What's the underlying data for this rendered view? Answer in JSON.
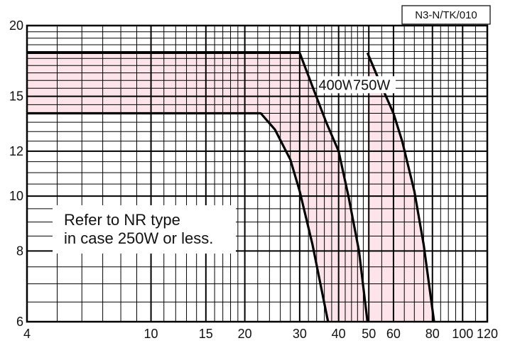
{
  "figure_id": "N3-N/TK/010",
  "chart_data": {
    "type": "line",
    "x_scale": "log",
    "y_scale": "log",
    "xlim": [
      4,
      120
    ],
    "ylim": [
      6,
      20
    ],
    "x_ticks": [
      4,
      10,
      15,
      20,
      30,
      40,
      50,
      60,
      80,
      100,
      120
    ],
    "x_tick_labels": [
      "4",
      "10",
      "15",
      "20",
      "30",
      "40",
      "50",
      "60",
      "80",
      "100",
      "120"
    ],
    "y_ticks": [
      6,
      8,
      10,
      12,
      15,
      20
    ],
    "y_tick_labels": [
      "6",
      "8",
      "10",
      "12",
      "15",
      "20"
    ],
    "grid": true,
    "xlabel": "",
    "ylabel": "",
    "series": [
      {
        "label": "",
        "points": [
          [
            4,
            14
          ],
          [
            22.5,
            14
          ],
          [
            25,
            13.1
          ],
          [
            28,
            11.6
          ],
          [
            30,
            10.2
          ],
          [
            33,
            8.2
          ],
          [
            37,
            6
          ]
        ]
      },
      {
        "label": "400W",
        "points": [
          [
            4,
            17.9
          ],
          [
            30,
            17.9
          ],
          [
            33,
            15.6
          ],
          [
            36.5,
            13.5
          ],
          [
            40,
            12
          ],
          [
            43,
            10
          ],
          [
            46.5,
            8
          ],
          [
            49.5,
            6
          ]
        ]
      },
      {
        "label": "750W",
        "points": [
          [
            49.5,
            17.9
          ],
          [
            55,
            15.6
          ],
          [
            60,
            14
          ],
          [
            64,
            12.5
          ],
          [
            70,
            10.2
          ],
          [
            75,
            8.2
          ],
          [
            81,
            6
          ]
        ]
      }
    ],
    "shaded_region": {
      "color": "#fce4ea",
      "lower_boundary": "",
      "upper_boundary": "750W"
    },
    "annotations": [
      {
        "text": "400W",
        "at": [
          34.5,
          15.5
        ]
      },
      {
        "text": "750W",
        "at": [
          44.5,
          15.5
        ]
      }
    ],
    "note": [
      "Refer to NR type",
      "in case 250W or less."
    ]
  },
  "colors": {
    "shade": "#fce4ea",
    "grid": "#000000",
    "curve": "#000000",
    "background": "#ffffff"
  }
}
